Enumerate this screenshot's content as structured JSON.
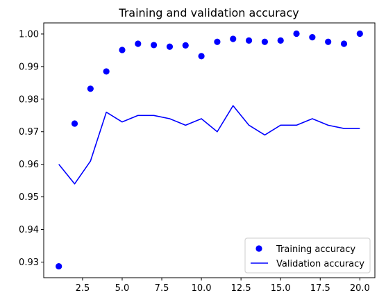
{
  "chart_data": {
    "type": "line",
    "title": "Training and validation accuracy",
    "xlabel": "",
    "ylabel": "",
    "xlim": [
      0.05,
      20.95
    ],
    "ylim": [
      0.9252,
      1.0034
    ],
    "x_ticks": [
      2.5,
      5.0,
      7.5,
      10.0,
      12.5,
      15.0,
      17.5,
      20.0
    ],
    "x_tick_labels": [
      "2.5",
      "5.0",
      "7.5",
      "10.0",
      "12.5",
      "15.0",
      "17.5",
      "20.0"
    ],
    "y_ticks": [
      0.93,
      0.94,
      0.95,
      0.96,
      0.97,
      0.98,
      0.99,
      1.0
    ],
    "y_tick_labels": [
      "0.93",
      "0.94",
      "0.95",
      "0.96",
      "0.97",
      "0.98",
      "0.99",
      "1.00"
    ],
    "grid": false,
    "legend_position": "bottom-right",
    "x": [
      1,
      2,
      3,
      4,
      5,
      6,
      7,
      8,
      9,
      10,
      11,
      12,
      13,
      14,
      15,
      16,
      17,
      18,
      19,
      20
    ],
    "series": [
      {
        "name": "Training accuracy",
        "style": "markers",
        "color": "#0000ff",
        "values": [
          0.9287,
          0.9725,
          0.9832,
          0.9885,
          0.9951,
          0.997,
          0.9966,
          0.9961,
          0.9965,
          0.9932,
          0.9976,
          0.9985,
          0.998,
          0.9976,
          0.998,
          1.0001,
          0.999,
          0.9976,
          0.997,
          1.0001
        ]
      },
      {
        "name": "Validation accuracy",
        "style": "line",
        "color": "#0000ff",
        "values": [
          0.96,
          0.954,
          0.961,
          0.976,
          0.973,
          0.975,
          0.975,
          0.974,
          0.972,
          0.974,
          0.97,
          0.978,
          0.972,
          0.969,
          0.972,
          0.972,
          0.974,
          0.972,
          0.971,
          0.971
        ]
      }
    ]
  }
}
